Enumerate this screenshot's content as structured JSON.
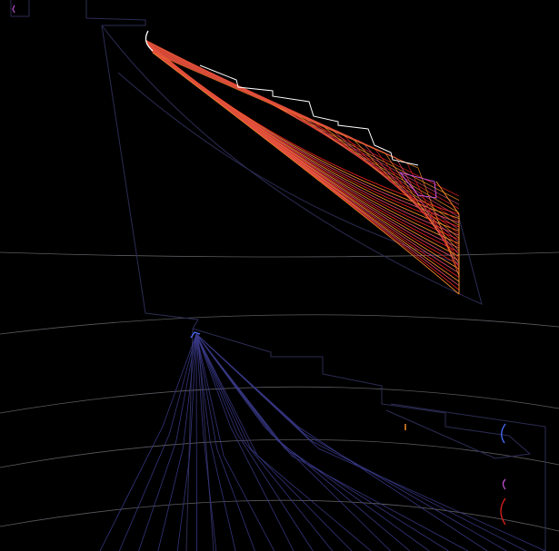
{
  "scene": {
    "background": "#000000",
    "colors": {
      "grid": "#c8c8d8",
      "outline": "#2c2c55",
      "ray_blue": "#3a3a8a",
      "ray_orange": "#f08a2a",
      "ray_red": "#e02020",
      "ray_pink": "#d84a6a",
      "white": "#ffffff",
      "magenta": "#c050d0",
      "blue_accent": "#4a6aff"
    },
    "upper_fan": {
      "ray_count": 20
    },
    "lower_fan": {
      "ray_count": 24
    }
  }
}
